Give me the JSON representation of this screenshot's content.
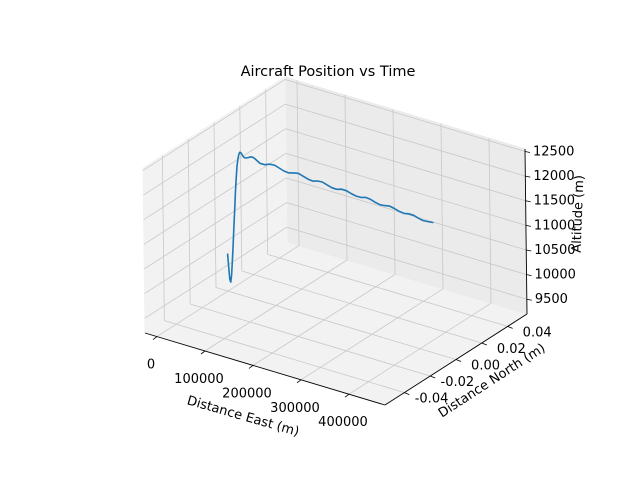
{
  "chart_data": {
    "type": "line3d",
    "title": "Aircraft Position vs Time",
    "xlabel": "Distance East (m)",
    "ylabel": "Distance North (m)",
    "zlabel": "Altitude (m)",
    "xlim": [
      -25000,
      475000
    ],
    "ylim": [
      -0.055,
      0.055
    ],
    "zlim": [
      9200,
      12550
    ],
    "xticks": [
      0,
      100000,
      200000,
      300000,
      400000
    ],
    "yticks": [
      -0.04,
      -0.02,
      0.0,
      0.02,
      0.04
    ],
    "zticks": [
      9500,
      10000,
      10500,
      11000,
      11500,
      12000,
      12500
    ],
    "grid": true,
    "series": [
      {
        "color": "#1f77b4",
        "x": [
          0,
          2000,
          4000,
          6000,
          8000,
          10000,
          12000,
          14000,
          16000,
          18000,
          20000,
          22000,
          24000,
          26000,
          28000,
          30000,
          32000,
          34000,
          36000,
          38000,
          40000,
          45000,
          50000,
          55000,
          60000,
          65000,
          70000,
          80000,
          90000,
          100000,
          110000,
          120000,
          130000,
          140000,
          150000,
          160000,
          170000,
          180000,
          190000,
          200000,
          210000,
          220000,
          230000,
          240000,
          250000,
          260000,
          270000,
          280000,
          290000,
          300000,
          310000,
          320000,
          330000,
          340000,
          350000,
          360000,
          370000,
          380000,
          390000,
          400000,
          410000,
          420000,
          430000
        ],
        "y": [
          0,
          0,
          0,
          0,
          0,
          0,
          0,
          0,
          0,
          0,
          0,
          0,
          0,
          0,
          0,
          0,
          0,
          0,
          0,
          0,
          0,
          0,
          0,
          0,
          0,
          0,
          0,
          0,
          0,
          0,
          0,
          0,
          0,
          0,
          0,
          0,
          0,
          0,
          0,
          0,
          0,
          0,
          0,
          0,
          0,
          0,
          0,
          0,
          0,
          0,
          0,
          0,
          0,
          0,
          0,
          0,
          0,
          0,
          0,
          0,
          0,
          0,
          0
        ],
        "z": [
          9950,
          9700,
          9450,
          9400,
          9550,
          9850,
          10200,
          10550,
          10900,
          11250,
          11550,
          11800,
          11950,
          12050,
          12100,
          12100,
          12080,
          12050,
          12030,
          12020,
          12020,
          12040,
          12070,
          12080,
          12060,
          12030,
          12000,
          12000,
          12040,
          12050,
          12020,
          11990,
          11980,
          12010,
          12030,
          12000,
          11970,
          11960,
          11990,
          12000,
          11970,
          11940,
          11940,
          11970,
          11970,
          11940,
          11920,
          11920,
          11950,
          11940,
          11910,
          11890,
          11900,
          11920,
          11900,
          11870,
          11860,
          11880,
          11880,
          11850,
          11830,
          11840,
          11850
        ]
      }
    ]
  }
}
